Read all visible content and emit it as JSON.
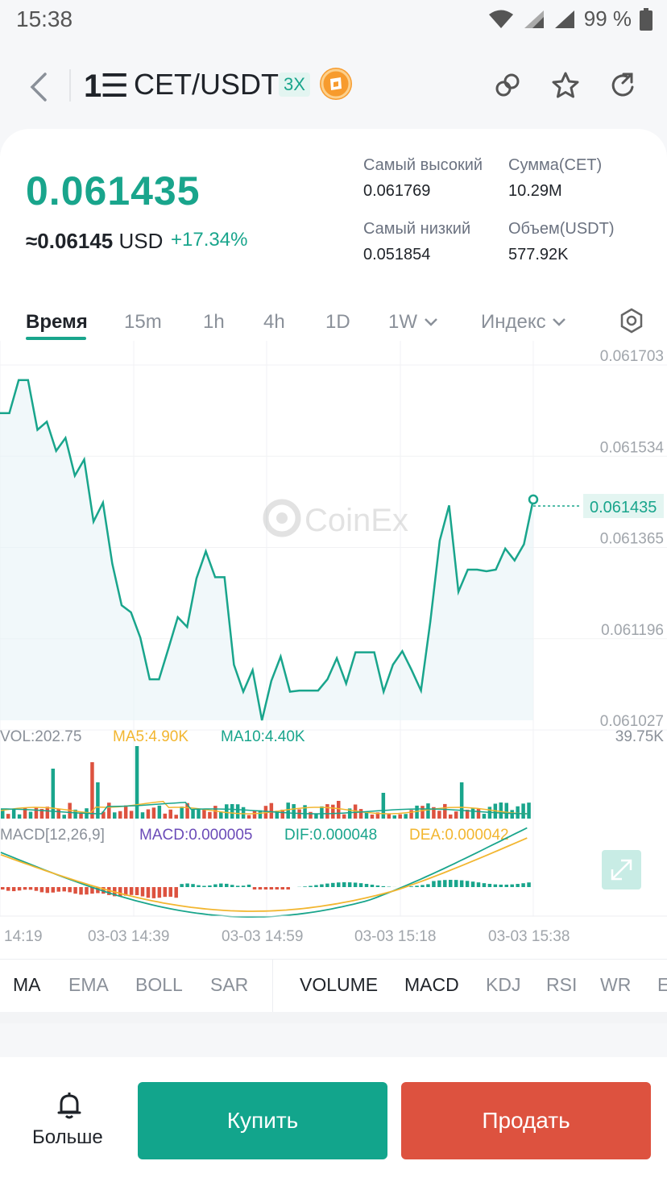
{
  "status": {
    "time": "15:38",
    "battery": "99 %"
  },
  "header": {
    "pair_icon": "1☰",
    "pair": "CET/USDT",
    "leverage": "3X"
  },
  "ticker": {
    "price": "0.061435",
    "usd_prefix": "≈0.06145",
    "usd_unit": "USD",
    "change": "+17.34%",
    "high_label": "Самый высокий",
    "high_value": "0.061769",
    "amount_label": "Сумма(CET)",
    "amount_value": "10.29M",
    "low_label": "Самый низкий",
    "low_value": "0.051854",
    "volume_label": "Объем(USDT)",
    "volume_value": "577.92K"
  },
  "tabs": {
    "time": "Время",
    "m15": "15m",
    "h1": "1h",
    "h4": "4h",
    "d1": "1D",
    "w1": "1W",
    "index": "Индекс"
  },
  "chart_data": {
    "type": "line",
    "watermark": "CoinEx",
    "y_ticks": [
      "0.061703",
      "0.061534",
      "0.061365",
      "0.061196",
      "0.061027"
    ],
    "ylim": [
      0.061027,
      0.061703
    ],
    "current_price": "0.061435",
    "x_ticks": [
      "14:19",
      "03-03 14:39",
      "03-03 14:59",
      "03-03 15:18",
      "03-03 15:38"
    ],
    "price_series": [
      0.061596,
      0.061596,
      0.061657,
      0.061657,
      0.061565,
      0.06158,
      0.061526,
      0.06155,
      0.06148,
      0.06151,
      0.061395,
      0.06143,
      0.061317,
      0.06124,
      0.061227,
      0.06118,
      0.061103,
      0.061103,
      0.06116,
      0.061218,
      0.0612,
      0.06129,
      0.06134,
      0.061292,
      0.061292,
      0.06113,
      0.06108,
      0.06112,
      0.061027,
      0.0611,
      0.061145,
      0.06108,
      0.061082,
      0.061082,
      0.061082,
      0.061103,
      0.061142,
      0.061095,
      0.061153,
      0.061153,
      0.061153,
      0.06108,
      0.06113,
      0.061155,
      0.06112,
      0.061082,
      0.06121,
      0.06136,
      0.061425,
      0.061265,
      0.061306,
      0.061306,
      0.061303,
      0.061306,
      0.061345,
      0.061323,
      0.061353,
      0.061436
    ],
    "volume": {
      "label": "VOL:202.75",
      "ma5": "MA5:4.90K",
      "ma10": "MA10:4.40K",
      "axis_max": "39.75K"
    },
    "macd": {
      "label": "MACD[12,26,9]",
      "macd": "MACD:0.000005",
      "dif": "DIF:0.000048",
      "dea": "DEA:0.000042"
    }
  },
  "indicators": {
    "main": [
      "MA",
      "EMA",
      "BOLL",
      "SAR"
    ],
    "sub": [
      "VOLUME",
      "MACD",
      "KDJ",
      "RSI",
      "WR",
      "E"
    ]
  },
  "bottom": {
    "more": "Больше",
    "buy": "Купить",
    "sell": "Продать"
  },
  "colors": {
    "up": "#19a58c",
    "down": "#dd523f",
    "ma5": "#f2b630",
    "macd": "#6b4bb8"
  }
}
